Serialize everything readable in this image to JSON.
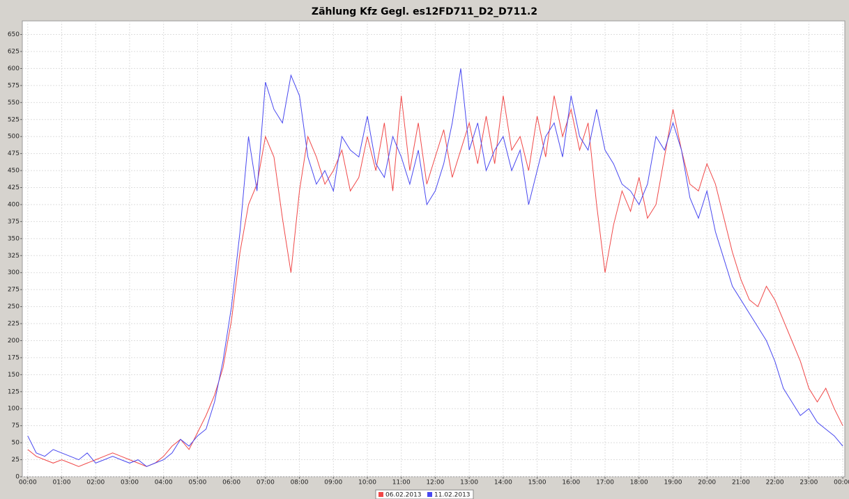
{
  "chart_data": {
    "type": "line",
    "title": "Zählung Kfz Gegl. es12FD711_D2_D711.2",
    "x": [
      0,
      0.25,
      0.5,
      0.75,
      1,
      1.25,
      1.5,
      1.75,
      2,
      2.25,
      2.5,
      2.75,
      3,
      3.25,
      3.5,
      3.75,
      4,
      4.25,
      4.5,
      4.75,
      5,
      5.25,
      5.5,
      5.75,
      6,
      6.25,
      6.5,
      6.75,
      7,
      7.25,
      7.5,
      7.75,
      8,
      8.25,
      8.5,
      8.75,
      9,
      9.25,
      9.5,
      9.75,
      10,
      10.25,
      10.5,
      10.75,
      11,
      11.25,
      11.5,
      11.75,
      12,
      12.25,
      12.5,
      12.75,
      13,
      13.25,
      13.5,
      13.75,
      14,
      14.25,
      14.5,
      14.75,
      15,
      15.25,
      15.5,
      15.75,
      16,
      16.25,
      16.5,
      16.75,
      17,
      17.25,
      17.5,
      17.75,
      18,
      18.25,
      18.5,
      18.75,
      19,
      19.25,
      19.5,
      19.75,
      20,
      20.25,
      20.5,
      20.75,
      21,
      21.25,
      21.5,
      21.75,
      22,
      22.25,
      22.5,
      22.75,
      23,
      23.25,
      23.5,
      23.75,
      24
    ],
    "series": [
      {
        "name": "06.02.2013",
        "color": "#f04848",
        "values": [
          40,
          30,
          25,
          20,
          25,
          20,
          15,
          20,
          25,
          30,
          35,
          30,
          25,
          20,
          15,
          20,
          30,
          45,
          55,
          40,
          65,
          90,
          120,
          160,
          230,
          330,
          400,
          430,
          500,
          470,
          380,
          300,
          420,
          500,
          470,
          430,
          450,
          480,
          420,
          440,
          500,
          450,
          520,
          420,
          560,
          450,
          520,
          430,
          470,
          510,
          440,
          480,
          520,
          460,
          530,
          460,
          560,
          480,
          500,
          450,
          530,
          470,
          560,
          500,
          540,
          480,
          520,
          400,
          300,
          370,
          420,
          390,
          440,
          380,
          400,
          470,
          540,
          480,
          430,
          420,
          460,
          430,
          380,
          330,
          290,
          260,
          250,
          280,
          260,
          230,
          200,
          170,
          130,
          110,
          130,
          100,
          75
        ]
      },
      {
        "name": "11.02.2013",
        "color": "#4848f0",
        "values": [
          60,
          35,
          30,
          40,
          35,
          30,
          25,
          35,
          20,
          25,
          30,
          25,
          20,
          25,
          15,
          20,
          25,
          35,
          55,
          45,
          60,
          70,
          110,
          170,
          250,
          360,
          500,
          420,
          580,
          540,
          520,
          590,
          560,
          470,
          430,
          450,
          420,
          500,
          480,
          470,
          530,
          460,
          440,
          500,
          470,
          430,
          480,
          400,
          420,
          460,
          520,
          600,
          480,
          520,
          450,
          480,
          500,
          450,
          480,
          400,
          450,
          500,
          520,
          470,
          560,
          500,
          480,
          540,
          480,
          460,
          430,
          420,
          400,
          430,
          500,
          480,
          520,
          480,
          410,
          380,
          420,
          360,
          320,
          280,
          260,
          240,
          220,
          200,
          170,
          130,
          110,
          90,
          100,
          80,
          70,
          60,
          45
        ]
      }
    ],
    "xlim": [
      -0.16,
      24.06
    ],
    "ylim": [
      0,
      670
    ],
    "xticks": [
      {
        "value": 0,
        "label": "00:00"
      },
      {
        "value": 1,
        "label": "01:00"
      },
      {
        "value": 2,
        "label": "02:00"
      },
      {
        "value": 3,
        "label": "03:00"
      },
      {
        "value": 4,
        "label": "04:00"
      },
      {
        "value": 5,
        "label": "05:00"
      },
      {
        "value": 6,
        "label": "06:00"
      },
      {
        "value": 7,
        "label": "07:00"
      },
      {
        "value": 8,
        "label": "08:00"
      },
      {
        "value": 9,
        "label": "09:00"
      },
      {
        "value": 10,
        "label": "10:00"
      },
      {
        "value": 11,
        "label": "11:00"
      },
      {
        "value": 12,
        "label": "12:00"
      },
      {
        "value": 13,
        "label": "13:00"
      },
      {
        "value": 14,
        "label": "14:00"
      },
      {
        "value": 15,
        "label": "15:00"
      },
      {
        "value": 16,
        "label": "16:00"
      },
      {
        "value": 17,
        "label": "17:00"
      },
      {
        "value": 18,
        "label": "18:00"
      },
      {
        "value": 19,
        "label": "19:00"
      },
      {
        "value": 20,
        "label": "20:00"
      },
      {
        "value": 21,
        "label": "21:00"
      },
      {
        "value": 22,
        "label": "22:00"
      },
      {
        "value": 23,
        "label": "23:00"
      },
      {
        "value": 24,
        "label": "00:00"
      }
    ],
    "yticks": [
      0,
      25,
      50,
      75,
      100,
      125,
      150,
      175,
      200,
      225,
      250,
      275,
      300,
      325,
      350,
      375,
      400,
      425,
      450,
      475,
      500,
      525,
      550,
      575,
      600,
      625,
      650
    ],
    "grid": true
  }
}
